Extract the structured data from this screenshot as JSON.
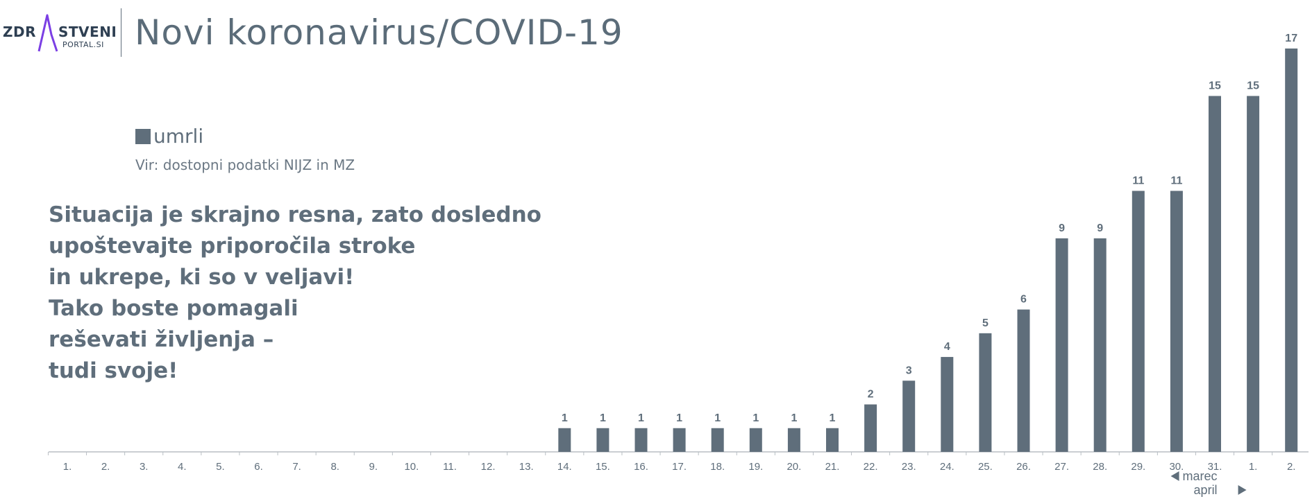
{
  "logo": {
    "part1": "ZDR",
    "part2": "STVENI",
    "part3": "PORTAL.SI"
  },
  "header": {
    "title": "Novi koronavirus/COVID-19"
  },
  "legend": {
    "label": "umrli",
    "color": "#5f6e7b"
  },
  "source": "Vir: dostopni podatki NIJZ in MZ",
  "message": [
    "Situacija je skrajno resna, zato dosledno",
    "upoštevajte priporočila stroke",
    "in ukrepe, ki so v veljavi!",
    "Tako boste pomagali",
    "reševati življenja –",
    "tudi svoje!"
  ],
  "colors": {
    "bar": "#5f6e7b",
    "text": "#5f6e7b",
    "axis": "#b8bec4",
    "logo_accent": "#7b3fe4"
  },
  "chart_data": {
    "type": "bar",
    "categories": [
      "1.",
      "2.",
      "3.",
      "4.",
      "5.",
      "6.",
      "7.",
      "8.",
      "9.",
      "10.",
      "11.",
      "12.",
      "13.",
      "14.",
      "15.",
      "16.",
      "17.",
      "18.",
      "19.",
      "20.",
      "21.",
      "22.",
      "23.",
      "24.",
      "25.",
      "26.",
      "27.",
      "28.",
      "29.",
      "30.",
      "31.",
      "1.",
      "2."
    ],
    "series": [
      {
        "name": "umrli",
        "values": [
          0,
          0,
          0,
          0,
          0,
          0,
          0,
          0,
          0,
          0,
          0,
          0,
          0,
          1,
          1,
          1,
          1,
          1,
          1,
          1,
          1,
          2,
          3,
          4,
          5,
          6,
          9,
          9,
          11,
          11,
          15,
          15,
          17
        ]
      }
    ],
    "data_labels": [
      "",
      "",
      "",
      "",
      "",
      "",
      "",
      "",
      "",
      "",
      "",
      "",
      "",
      "1",
      "1",
      "1",
      "1",
      "1",
      "1",
      "1",
      "1",
      "2",
      "3",
      "4",
      "5",
      "6",
      "9",
      "9",
      "11",
      "11",
      "15",
      "15",
      "17"
    ],
    "ylim": [
      0,
      17
    ],
    "grid": false,
    "month_labels": {
      "previous": "marec",
      "next": "april"
    }
  }
}
